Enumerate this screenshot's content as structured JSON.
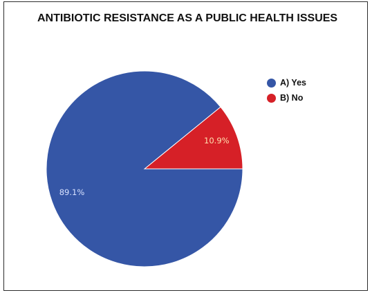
{
  "chart_data": {
    "type": "pie",
    "title": "ANTIBIOTIC RESISTANCE AS A PUBLIC HEALTH ISSUES",
    "categories": [
      "A) Yes",
      "B) No"
    ],
    "values": [
      89.1,
      10.9
    ],
    "labels": [
      "89.1%",
      "10.9%"
    ],
    "colors": [
      "#3556a6",
      "#d62027"
    ],
    "legend_position": "right"
  }
}
